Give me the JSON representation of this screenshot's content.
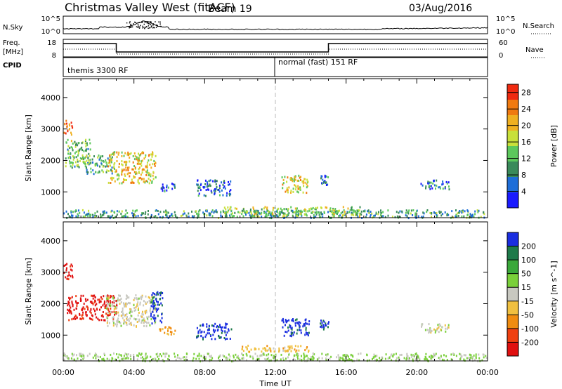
{
  "header": {
    "station": "Christmas Valley West (fitACF)",
    "beam": "Beam 19",
    "date": "03/Aug/2016"
  },
  "top_panels": {
    "nsky_label": "N.Sky",
    "nsky_ticks": [
      "10^5",
      "10^0"
    ],
    "nsearch_label": "N.Search",
    "nsearch_ticks": [
      "10^5",
      "10^0"
    ],
    "freq_label_1": "Freq.",
    "freq_label_2": "[MHz]",
    "freq_ticks": [
      "18",
      "8"
    ],
    "nave_label": "Nave",
    "nave_ticks": [
      "60",
      "0"
    ],
    "cpid_label": "CPID",
    "cpid_modes": [
      {
        "name": "themis 3300 RF",
        "start_hour": 0
      },
      {
        "name": "normal (fast) 151 RF",
        "start_hour": 12
      }
    ]
  },
  "chart_data": [
    {
      "type": "heatmap",
      "title": "",
      "xlabel": "",
      "ylabel": "Slant Range [km]",
      "xlim": [
        0,
        24
      ],
      "ylim": [
        180,
        4600
      ],
      "x_ticks": [
        "00:00",
        "04:00",
        "08:00",
        "12:00",
        "16:00",
        "20:00",
        "00:00"
      ],
      "y_ticks": [
        1000,
        2000,
        3000,
        4000
      ],
      "colorbar_label": "Power [dB]",
      "colorbar_ticks": [
        4,
        8,
        12,
        16,
        20,
        24,
        28
      ],
      "colorbar_range": [
        0,
        30
      ],
      "colors": [
        "#1a1aff",
        "#1e6ed8",
        "#3a8a5a",
        "#5cc85c",
        "#c8e03a",
        "#f0b020",
        "#f07a10",
        "#f02a10"
      ],
      "regions": [
        {
          "t": [
            0.0,
            0.5
          ],
          "r": [
            2850,
            3300
          ],
          "v": 24
        },
        {
          "t": [
            0.1,
            1.5
          ],
          "r": [
            1800,
            2700
          ],
          "v": 13
        },
        {
          "t": [
            1.2,
            2.8
          ],
          "r": [
            1600,
            2200
          ],
          "v": 11
        },
        {
          "t": [
            2.5,
            5.2
          ],
          "r": [
            1300,
            2300
          ],
          "v": 19
        },
        {
          "t": [
            5.3,
            6.3
          ],
          "r": [
            1050,
            1300
          ],
          "v": 6
        },
        {
          "t": [
            7.5,
            9.5
          ],
          "r": [
            900,
            1400
          ],
          "v": 6
        },
        {
          "t": [
            12.3,
            13.9
          ],
          "r": [
            1000,
            1550
          ],
          "v": 18
        },
        {
          "t": [
            14.5,
            15.0
          ],
          "r": [
            1250,
            1550
          ],
          "v": 7
        },
        {
          "t": [
            20.2,
            21.8
          ],
          "r": [
            1100,
            1400
          ],
          "v": 7
        },
        {
          "t": [
            0.0,
            24.0
          ],
          "r": [
            200,
            450
          ],
          "v": 10
        },
        {
          "t": [
            9.0,
            17.0
          ],
          "r": [
            250,
            550
          ],
          "v": 15
        }
      ]
    },
    {
      "type": "heatmap",
      "title": "",
      "xlabel": "Time UT",
      "ylabel": "Slant Range [km]",
      "xlim": [
        0,
        24
      ],
      "ylim": [
        180,
        4600
      ],
      "x_ticks": [
        "00:00",
        "04:00",
        "08:00",
        "12:00",
        "16:00",
        "20:00",
        "00:00"
      ],
      "y_ticks": [
        1000,
        2000,
        3000,
        4000
      ],
      "colorbar_label": "Velocity [m s^-1]",
      "colorbar_ticks": [
        "200",
        "100",
        "50",
        "15",
        "-15",
        "-50",
        "-100",
        "-200"
      ],
      "colorbar_range": [
        -250,
        250
      ],
      "colors": [
        "#1a2ee0",
        "#1e7a4a",
        "#3aa83a",
        "#7ad03a",
        "#c8c8c0",
        "#f0c040",
        "#f08c10",
        "#f04010",
        "#e01010"
      ],
      "regions": [
        {
          "t": [
            0.0,
            0.5
          ],
          "r": [
            2800,
            3300
          ],
          "v": -220
        },
        {
          "t": [
            0.2,
            3.0
          ],
          "r": [
            1500,
            2300
          ],
          "v": -220
        },
        {
          "t": [
            2.4,
            5.2
          ],
          "r": [
            1300,
            2300
          ],
          "v": 0
        },
        {
          "t": [
            4.9,
            5.6
          ],
          "r": [
            1400,
            2400
          ],
          "v": 220
        },
        {
          "t": [
            5.4,
            6.3
          ],
          "r": [
            1050,
            1300
          ],
          "v": -100
        },
        {
          "t": [
            7.5,
            9.5
          ],
          "r": [
            900,
            1400
          ],
          "v": 220
        },
        {
          "t": [
            12.3,
            13.9
          ],
          "r": [
            1000,
            1550
          ],
          "v": 220
        },
        {
          "t": [
            14.5,
            15.0
          ],
          "r": [
            1200,
            1500
          ],
          "v": 220
        },
        {
          "t": [
            20.2,
            21.8
          ],
          "r": [
            1100,
            1400
          ],
          "v": 0
        },
        {
          "t": [
            0.0,
            24.0
          ],
          "r": [
            200,
            450
          ],
          "v": 40
        },
        {
          "t": [
            10.0,
            14.0
          ],
          "r": [
            500,
            700
          ],
          "v": -60
        }
      ]
    }
  ]
}
